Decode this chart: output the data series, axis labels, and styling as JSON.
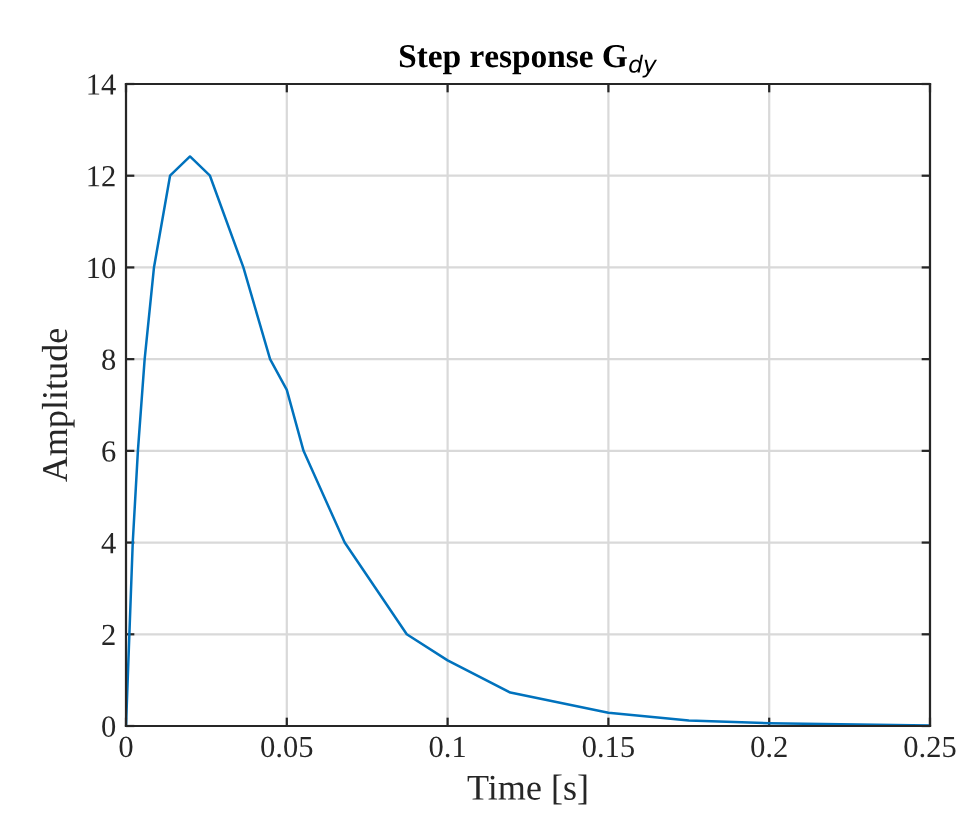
{
  "chart_data": {
    "type": "line",
    "title": "Step response G$_{dy}$",
    "xlabel": "Time [s]",
    "ylabel": "Amplitude",
    "x": [
      0,
      0.0021,
      0.0037,
      0.0058,
      0.0087,
      0.0137,
      0.0199,
      0.0261,
      0.0365,
      0.0448,
      0.05,
      0.0552,
      0.068,
      0.0873,
      0.1,
      0.1195,
      0.15,
      0.175,
      0.2,
      0.25
    ],
    "series": [
      {
        "color": "#0072bd",
        "values": [
          0,
          4,
          6,
          8,
          10,
          12,
          12.42,
          12,
          10,
          8,
          7.33,
          6,
          4,
          2,
          1.43,
          0.73,
          0.29,
          0.12,
          0.06,
          0.01
        ]
      }
    ],
    "xlim": [
      0,
      0.25
    ],
    "ylim": [
      0,
      14
    ],
    "xticks": [
      0,
      0.05,
      0.1,
      0.15,
      0.2,
      0.25
    ],
    "yticks": [
      0,
      2,
      4,
      6,
      8,
      10,
      12,
      14
    ],
    "grid": true,
    "marker": "none",
    "line_style": "solid"
  }
}
